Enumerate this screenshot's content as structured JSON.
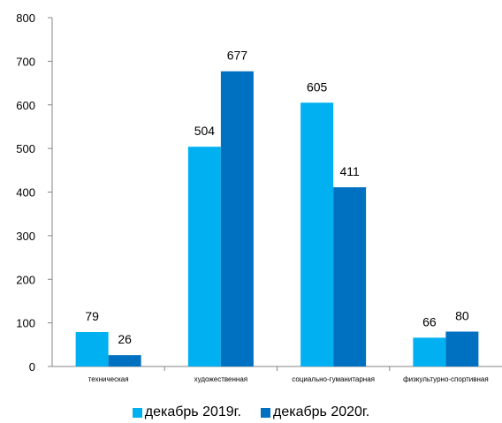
{
  "chart_data": {
    "type": "bar",
    "categories": [
      "техническая",
      "художественная",
      "социально-гуманитарная",
      "физкультурно-спортивная"
    ],
    "series": [
      {
        "name": "декабрь 2019г.",
        "values": [
          79,
          504,
          605,
          66
        ],
        "color": "#00B0F0"
      },
      {
        "name": "декабрь 2020г.",
        "values": [
          26,
          677,
          411,
          80
        ],
        "color": "#0070C0"
      }
    ],
    "ylim": [
      0,
      800
    ],
    "yticks": [
      0,
      100,
      200,
      300,
      400,
      500,
      600,
      700,
      800
    ],
    "grid": false,
    "legend": "bottom"
  }
}
